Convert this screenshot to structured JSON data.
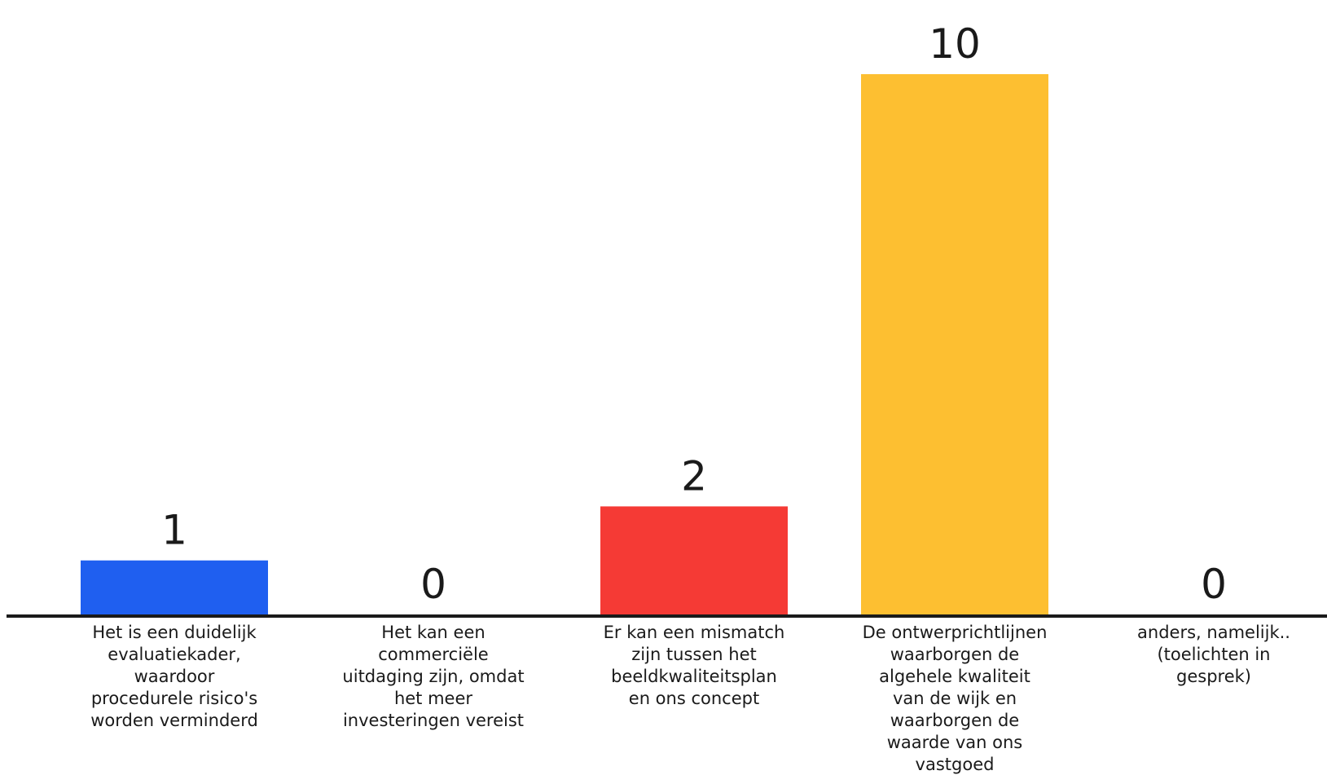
{
  "chart_data": {
    "type": "bar",
    "categories": [
      [
        "Het is een duidelijk",
        "evaluatiekader,",
        "waardoor",
        "procedurele risico's",
        "worden verminderd"
      ],
      [
        "Het kan een",
        "commerciële",
        "uitdaging zijn, omdat",
        "het meer",
        "investeringen vereist"
      ],
      [
        "Er kan een mismatch",
        "zijn tussen het",
        "beeldkwaliteitsplan",
        "en ons concept"
      ],
      [
        "De ontwerprichtlijnen",
        "waarborgen de",
        "algehele kwaliteit",
        "van de wijk en",
        "waarborgen de",
        "waarde van ons",
        "vastgoed"
      ],
      [
        "anders, namelijk..",
        "(toelichten in",
        "gesprek)"
      ]
    ],
    "values": [
      1,
      0,
      2,
      10,
      0
    ],
    "value_labels": [
      "1",
      "0",
      "2",
      "10",
      "0"
    ],
    "colors": [
      "#1f5ff0",
      "#1f5ff0",
      "#f53a35",
      "#fdbf31",
      "#1f5ff0"
    ],
    "title": "",
    "xlabel": "",
    "ylabel": "",
    "ylim": [
      0,
      10
    ],
    "grid": false,
    "legend": "none"
  }
}
